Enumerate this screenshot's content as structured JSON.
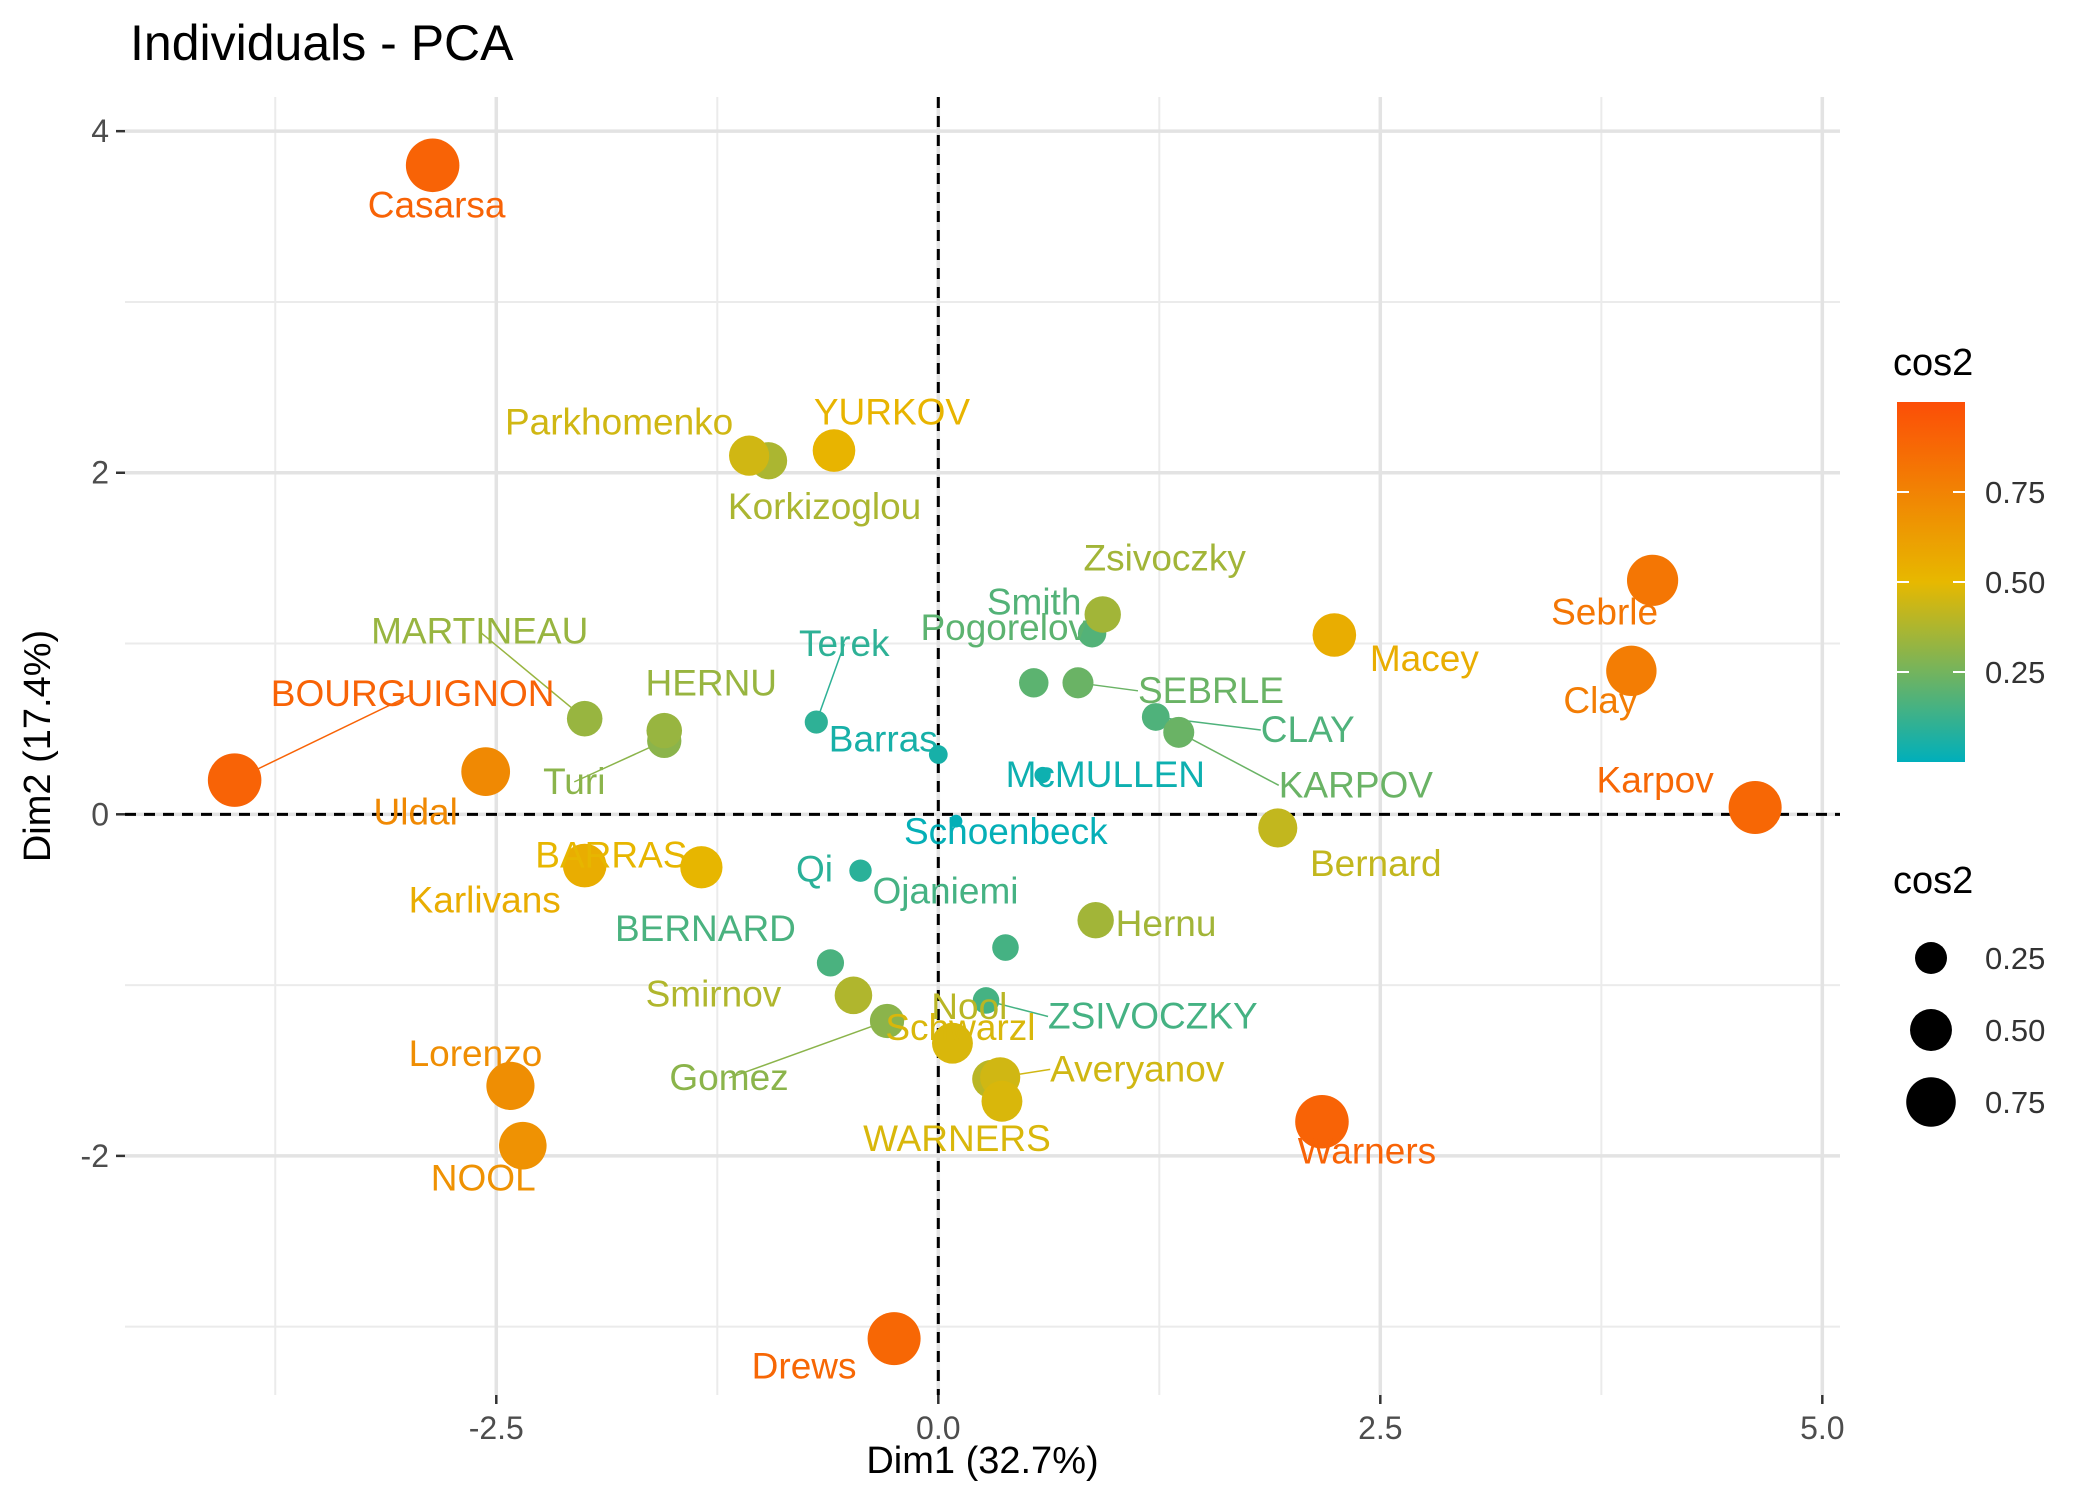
{
  "chart_data": {
    "type": "scatter",
    "title": "Individuals - PCA",
    "xlabel": "Dim1 (32.7%)",
    "ylabel": "Dim2 (17.4%)",
    "xlim": [
      -4.6,
      5.1
    ],
    "ylim": [
      -3.4,
      4.2
    ],
    "xticks": [
      -2.5,
      0.0,
      2.5,
      5.0
    ],
    "xtick_labels": [
      "-2.5",
      "0.0",
      "2.5",
      "5.0"
    ],
    "yticks": [
      -2,
      0,
      2,
      4
    ],
    "ytick_labels": [
      "-2",
      "0",
      "2",
      "4"
    ],
    "grid": true,
    "reference_lines": {
      "x": 0,
      "y": 0,
      "style": "dashed"
    },
    "color_scale": {
      "low": "#00AFBB",
      "mid": "#E7B800",
      "high": "#FC4E07",
      "mid_value": 0.5
    },
    "legend_color": {
      "title": "cos2",
      "labels": [
        "0.75",
        "0.50",
        "0.25"
      ],
      "values": [
        0.75,
        0.5,
        0.25
      ]
    },
    "legend_size": {
      "title": "cos2",
      "labels": [
        "0.25",
        "0.50",
        "0.75"
      ],
      "values": [
        0.25,
        0.5,
        0.75
      ]
    },
    "points": [
      {
        "label": "SEBRLE",
        "x": 0.79,
        "y": 0.77,
        "cos2": 0.23
      },
      {
        "label": "CLAY",
        "x": 1.23,
        "y": 0.57,
        "cos2": 0.17
      },
      {
        "label": "KARPOV",
        "x": 1.36,
        "y": 0.48,
        "cos2": 0.23
      },
      {
        "label": "BERNARD",
        "x": -0.61,
        "y": -0.87,
        "cos2": 0.16
      },
      {
        "label": "YURKOV",
        "x": -0.59,
        "y": 2.13,
        "cos2": 0.52
      },
      {
        "label": "WARNERS",
        "x": 0.36,
        "y": -1.68,
        "cos2": 0.47
      },
      {
        "label": "ZSIVOCZKY",
        "x": 0.27,
        "y": -1.09,
        "cos2": 0.15
      },
      {
        "label": "McMULLEN",
        "x": 0.59,
        "y": 0.23,
        "cos2": 0.03
      },
      {
        "label": "MARTINEAU",
        "x": -2.0,
        "y": 0.56,
        "cos2": 0.33
      },
      {
        "label": "HERNU",
        "x": -1.55,
        "y": 0.49,
        "cos2": 0.33
      },
      {
        "label": "BARRAS",
        "x": -1.34,
        "y": -0.31,
        "cos2": 0.51
      },
      {
        "label": "NOOL",
        "x": -2.35,
        "y": -1.94,
        "cos2": 0.68
      },
      {
        "label": "BOURGUIGNON",
        "x": -3.98,
        "y": 0.2,
        "cos2": 0.9
      },
      {
        "label": "Sebrle",
        "x": 4.04,
        "y": 1.37,
        "cos2": 0.81
      },
      {
        "label": "Clay",
        "x": 3.92,
        "y": 0.84,
        "cos2": 0.78
      },
      {
        "label": "Karpov",
        "x": 4.62,
        "y": 0.04,
        "cos2": 0.88
      },
      {
        "label": "Bernard",
        "x": 1.92,
        "y": -0.08,
        "cos2": 0.42
      },
      {
        "label": "Macey",
        "x": 2.24,
        "y": 1.05,
        "cos2": 0.55
      },
      {
        "label": "Warners",
        "x": 2.17,
        "y": -1.8,
        "cos2": 0.9
      },
      {
        "label": "Zsivoczky",
        "x": 0.93,
        "y": 1.17,
        "cos2": 0.35
      },
      {
        "label": "Hernu",
        "x": 0.89,
        "y": -0.62,
        "cos2": 0.35
      },
      {
        "label": "Nool",
        "x": 0.3,
        "y": -1.55,
        "cos2": 0.4
      },
      {
        "label": "Schoenbeck",
        "x": 0.1,
        "y": -0.04,
        "cos2": 0.01
      },
      {
        "label": "Pogorelov",
        "x": 0.54,
        "y": 0.77,
        "cos2": 0.2
      },
      {
        "label": "Schwarzl",
        "x": 0.08,
        "y": -1.34,
        "cos2": 0.47
      },
      {
        "label": "Averyanov",
        "x": 0.35,
        "y": -1.54,
        "cos2": 0.45
      },
      {
        "label": "Ojaniemi",
        "x": 0.38,
        "y": -0.78,
        "cos2": 0.15
      },
      {
        "label": "Smirnov",
        "x": -0.48,
        "y": -1.06,
        "cos2": 0.38
      },
      {
        "label": "Qi",
        "x": -0.44,
        "y": -0.33,
        "cos2": 0.09
      },
      {
        "label": "Drews",
        "x": -0.25,
        "y": -3.07,
        "cos2": 0.88
      },
      {
        "label": "Parkhomenko",
        "x": -1.07,
        "y": 2.1,
        "cos2": 0.45
      },
      {
        "label": "Terek",
        "x": -0.69,
        "y": 0.54,
        "cos2": 0.1
      },
      {
        "label": "Gomez",
        "x": -0.29,
        "y": -1.21,
        "cos2": 0.3
      },
      {
        "label": "Turi",
        "x": -1.55,
        "y": 0.43,
        "cos2": 0.3
      },
      {
        "label": "Lorenzo",
        "x": -2.42,
        "y": -1.59,
        "cos2": 0.7
      },
      {
        "label": "Karlivans",
        "x": -2.0,
        "y": -0.3,
        "cos2": 0.55
      },
      {
        "label": "Korkizoglou",
        "x": -0.96,
        "y": 2.07,
        "cos2": 0.37
      },
      {
        "label": "Uldal",
        "x": -2.56,
        "y": 0.25,
        "cos2": 0.72
      },
      {
        "label": "Casarsa",
        "x": -2.86,
        "y": 3.8,
        "cos2": 0.9
      },
      {
        "label": "Barras",
        "x": 0.0,
        "y": 0.35,
        "cos2": 0.05
      },
      {
        "label": "Smith",
        "x": 0.87,
        "y": 1.06,
        "cos2": 0.18
      }
    ]
  }
}
